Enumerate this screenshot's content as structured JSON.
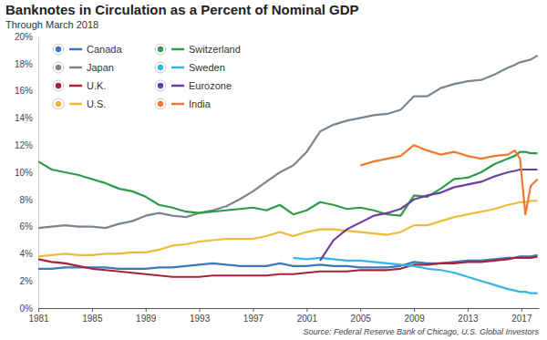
{
  "chart_data": {
    "type": "line",
    "title": "Banknotes in Circulation as a Percent of Nominal GDP",
    "subtitle": "Through March 2018",
    "source": "Source: Federal Reserve Bank of Chicago, U.S. Global Investors",
    "legend": "top-left",
    "grid": false,
    "xlim": [
      1981,
      2018.3
    ],
    "xticks": [
      1981,
      1985,
      1989,
      1993,
      1997,
      2001,
      2005,
      2009,
      2013,
      2017
    ],
    "ylim": [
      0,
      20
    ],
    "yticks": [
      {
        "value": 0,
        "label": "0%"
      },
      {
        "value": 2,
        "label": "2%"
      },
      {
        "value": 4,
        "label": "4%"
      },
      {
        "value": 6,
        "label": "6%"
      },
      {
        "value": 8,
        "label": "8%"
      },
      {
        "value": 10,
        "label": "10%"
      },
      {
        "value": 12,
        "label": "12%"
      },
      {
        "value": 14,
        "label": "14%"
      },
      {
        "value": 16,
        "label": "16%"
      },
      {
        "value": 18,
        "label": "18%"
      },
      {
        "value": 20,
        "label": "20%"
      }
    ],
    "x": [
      1981,
      1982,
      1983,
      1984,
      1985,
      1986,
      1987,
      1988,
      1989,
      1990,
      1991,
      1992,
      1993,
      1994,
      1995,
      1996,
      1997,
      1998,
      1999,
      2000,
      2001,
      2002,
      2003,
      2004,
      2005,
      2006,
      2007,
      2008,
      2009,
      2010,
      2011,
      2012,
      2013,
      2014,
      2015,
      2016,
      2016.5,
      2016.9,
      2017.3,
      2017.7,
      2018.2
    ],
    "series": [
      {
        "name": "Canada",
        "color": "#3d78b9",
        "values": [
          2.9,
          2.9,
          3.0,
          3.0,
          3.0,
          3.0,
          2.9,
          2.9,
          2.9,
          3.0,
          3.0,
          3.1,
          3.2,
          3.3,
          3.2,
          3.1,
          3.1,
          3.1,
          3.3,
          3.1,
          3.1,
          3.2,
          3.1,
          3.1,
          3.0,
          3.0,
          3.0,
          3.1,
          3.4,
          3.3,
          3.3,
          3.4,
          3.5,
          3.5,
          3.6,
          3.7,
          3.7,
          3.8,
          3.8,
          3.8,
          3.9
        ]
      },
      {
        "name": "Japan",
        "color": "#7a8590",
        "values": [
          5.9,
          6.0,
          6.1,
          6.0,
          6.0,
          5.9,
          6.2,
          6.4,
          6.8,
          7.0,
          6.8,
          6.7,
          7.0,
          7.2,
          7.5,
          8.0,
          8.6,
          9.3,
          10.0,
          10.5,
          11.5,
          13.0,
          13.5,
          13.8,
          14.0,
          14.2,
          14.3,
          14.6,
          15.6,
          15.6,
          16.2,
          16.5,
          16.7,
          16.8,
          17.2,
          17.7,
          17.9,
          18.1,
          18.2,
          18.3,
          18.6
        ]
      },
      {
        "name": "U.K.",
        "color": "#a8233a",
        "values": [
          3.6,
          3.4,
          3.3,
          3.1,
          2.9,
          2.8,
          2.7,
          2.6,
          2.5,
          2.4,
          2.3,
          2.3,
          2.3,
          2.4,
          2.4,
          2.4,
          2.4,
          2.4,
          2.5,
          2.5,
          2.6,
          2.7,
          2.7,
          2.7,
          2.8,
          2.8,
          2.8,
          2.9,
          3.2,
          3.2,
          3.3,
          3.3,
          3.4,
          3.4,
          3.5,
          3.6,
          3.7,
          3.7,
          3.7,
          3.7,
          3.8
        ]
      },
      {
        "name": "U.S.",
        "color": "#f0b93a",
        "values": [
          3.8,
          3.9,
          4.0,
          3.9,
          3.9,
          4.0,
          4.0,
          4.1,
          4.1,
          4.3,
          4.6,
          4.7,
          4.9,
          5.0,
          5.1,
          5.1,
          5.1,
          5.3,
          5.6,
          5.3,
          5.6,
          5.8,
          5.8,
          5.7,
          5.6,
          5.5,
          5.4,
          5.6,
          6.1,
          6.1,
          6.4,
          6.7,
          6.9,
          7.1,
          7.3,
          7.6,
          7.7,
          7.8,
          7.8,
          7.9,
          7.9
        ]
      },
      {
        "name": "Switzerland",
        "color": "#2e9b48",
        "values": [
          10.8,
          10.2,
          10.0,
          9.8,
          9.5,
          9.2,
          8.8,
          8.6,
          8.2,
          7.6,
          7.4,
          7.1,
          7.0,
          7.1,
          7.2,
          7.3,
          7.4,
          7.2,
          7.6,
          6.9,
          7.2,
          7.8,
          7.6,
          7.3,
          7.4,
          7.2,
          6.9,
          6.8,
          8.3,
          8.2,
          8.8,
          9.5,
          9.6,
          10.0,
          10.6,
          11.0,
          11.2,
          11.5,
          11.5,
          11.4,
          11.4
        ]
      },
      {
        "name": "Sweden",
        "color": "#35b5e5",
        "values": [
          null,
          null,
          null,
          null,
          null,
          null,
          null,
          null,
          null,
          null,
          null,
          null,
          null,
          null,
          null,
          null,
          null,
          null,
          null,
          3.7,
          3.6,
          3.7,
          3.6,
          3.5,
          3.5,
          3.4,
          3.3,
          3.2,
          3.1,
          2.9,
          2.8,
          2.6,
          2.3,
          2.0,
          1.7,
          1.4,
          1.3,
          1.2,
          1.2,
          1.1,
          1.1
        ]
      },
      {
        "name": "Eurozone",
        "color": "#6a3fa0",
        "values": [
          null,
          null,
          null,
          null,
          null,
          null,
          null,
          null,
          null,
          null,
          null,
          null,
          null,
          null,
          null,
          null,
          null,
          null,
          null,
          null,
          null,
          3.5,
          5.0,
          5.8,
          6.3,
          6.8,
          7.0,
          7.3,
          8.0,
          8.3,
          8.5,
          8.9,
          9.1,
          9.3,
          9.7,
          10.0,
          10.1,
          10.2,
          10.2,
          10.2,
          10.2
        ]
      },
      {
        "name": "India",
        "color": "#f07a2b",
        "values": [
          null,
          null,
          null,
          null,
          null,
          null,
          null,
          null,
          null,
          null,
          null,
          null,
          null,
          null,
          null,
          null,
          null,
          null,
          null,
          null,
          null,
          null,
          null,
          null,
          10.5,
          10.8,
          11.0,
          11.2,
          12.0,
          11.6,
          11.3,
          11.5,
          11.2,
          11.0,
          11.2,
          11.3,
          11.6,
          11.0,
          6.9,
          9.0,
          9.5
        ]
      }
    ]
  }
}
